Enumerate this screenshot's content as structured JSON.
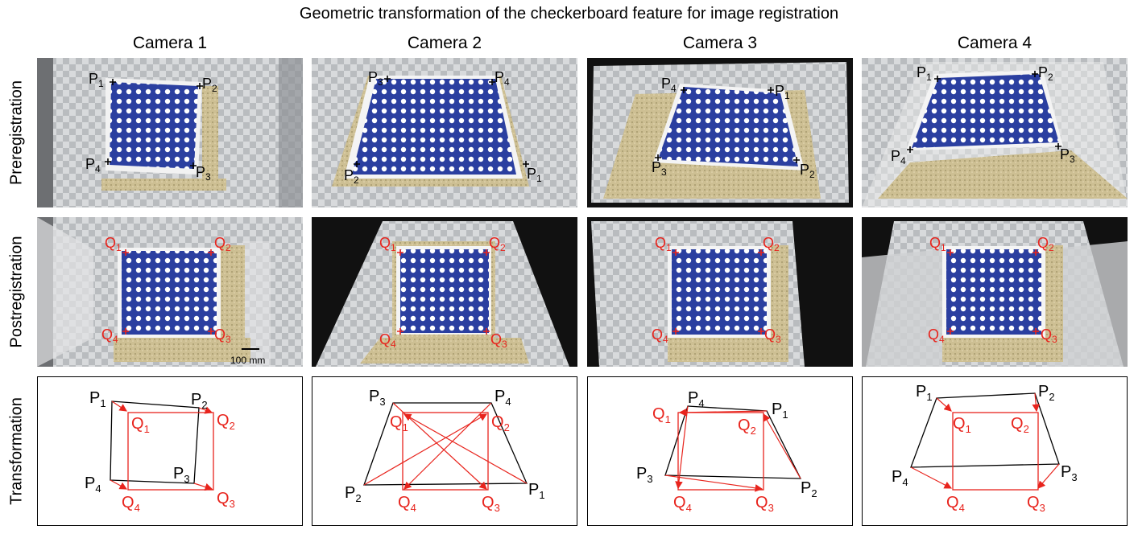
{
  "title": "Geometric transformation of the checkerboard feature for image registration",
  "cameras": [
    "Camera 1",
    "Camera 2",
    "Camera 3",
    "Camera 4"
  ],
  "rows": [
    "Preregistration",
    "Postregistration",
    "Transformation"
  ],
  "scale_bar": "100 mm",
  "point_labels": {
    "P": [
      "P",
      "P",
      "P",
      "P"
    ],
    "Q": [
      "Q",
      "Q",
      "Q",
      "Q"
    ],
    "subscripts": [
      "1",
      "2",
      "3",
      "4"
    ]
  },
  "colors": {
    "checker_blue": "#2b3fa0",
    "sand": "#c8b98a",
    "q_red": "#e8241d",
    "p_black": "#000000"
  }
}
